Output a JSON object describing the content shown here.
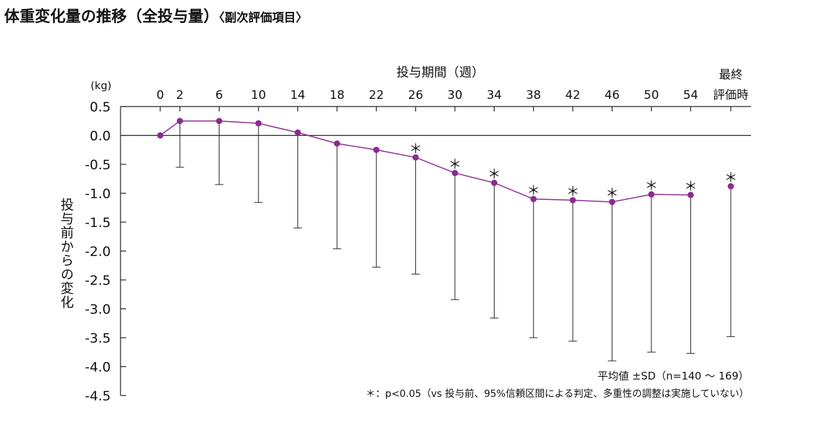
{
  "title": {
    "main": "体重変化量の推移（全投与量）",
    "sub": "〈副次評価項目〉"
  },
  "chart_data": {
    "type": "line",
    "title": "体重変化量の推移（全投与量）",
    "subtitle": "〈副次評価項目〉",
    "xlabel": "投与期間（週）",
    "ylabel": "投与前からの変化",
    "yunit": "(kg)",
    "ylim": [
      -4.5,
      0.5
    ],
    "yticks": [
      0.5,
      0.0,
      -0.5,
      -1.0,
      -1.5,
      -2.0,
      -2.5,
      -3.0,
      -3.5,
      -4.0,
      -4.5
    ],
    "ytick_labels": [
      "0.5",
      "0.0",
      "-0.5",
      "-1.0",
      "-1.5",
      "-2.0",
      "-2.5",
      "-3.0",
      "-3.5",
      "-4.0",
      "-4.5"
    ],
    "x_label_first": "最終",
    "x_label_second": "評価時",
    "points": [
      {
        "label": "0",
        "week": 0,
        "mean": 0.0,
        "lower": null,
        "significant": false
      },
      {
        "label": "2",
        "week": 2,
        "mean": 0.25,
        "lower": -0.55,
        "significant": false
      },
      {
        "label": "6",
        "week": 6,
        "mean": 0.25,
        "lower": -0.85,
        "significant": false
      },
      {
        "label": "10",
        "week": 10,
        "mean": 0.21,
        "lower": -1.16,
        "significant": false
      },
      {
        "label": "14",
        "week": 14,
        "mean": 0.05,
        "lower": -1.6,
        "significant": false
      },
      {
        "label": "18",
        "week": 18,
        "mean": -0.14,
        "lower": -1.96,
        "significant": false
      },
      {
        "label": "22",
        "week": 22,
        "mean": -0.25,
        "lower": -2.28,
        "significant": false
      },
      {
        "label": "26",
        "week": 26,
        "mean": -0.38,
        "lower": -2.4,
        "significant": true
      },
      {
        "label": "30",
        "week": 30,
        "mean": -0.65,
        "lower": -2.84,
        "significant": true
      },
      {
        "label": "34",
        "week": 34,
        "mean": -0.82,
        "lower": -3.16,
        "significant": true
      },
      {
        "label": "38",
        "week": 38,
        "mean": -1.1,
        "lower": -3.5,
        "significant": true
      },
      {
        "label": "42",
        "week": 42,
        "mean": -1.12,
        "lower": -3.56,
        "significant": true
      },
      {
        "label": "46",
        "week": 46,
        "mean": -1.15,
        "lower": -3.9,
        "significant": true
      },
      {
        "label": "50",
        "week": 50,
        "mean": -1.02,
        "lower": -3.75,
        "significant": true
      },
      {
        "label": "54",
        "week": 54,
        "mean": -1.03,
        "lower": -3.77,
        "significant": true
      },
      {
        "label": "最終評価時",
        "week": null,
        "mean": -0.88,
        "lower": -3.48,
        "significant": true
      }
    ],
    "significance_marker": "＊",
    "legend_line1": "平均値 ±SD（n=140 ～ 169）",
    "legend_line2": "＊：p<0.05（vs 投与前、95%信頼区間による判定、多重性の調整は実施していない）",
    "colors": {
      "series": "#8b2f8e",
      "marker": "#8b2b8f",
      "errorbar": "#222222",
      "axis": "#222222"
    }
  }
}
